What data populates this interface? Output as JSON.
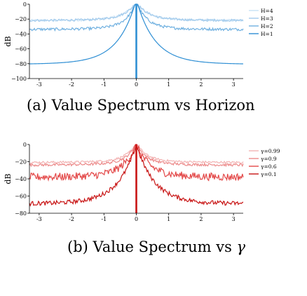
{
  "chart_data": [
    {
      "type": "line",
      "caption": "(a) Value Spectrum vs Horizon",
      "ylabel": "dB",
      "xlim": [
        -3.3,
        3.3
      ],
      "ylim": [
        -100,
        0
      ],
      "xticks": [
        -3,
        -2,
        -1,
        0,
        1,
        2,
        3
      ],
      "xtick_labels": [
        "-3",
        "-2",
        "-1",
        "0",
        "1",
        "2",
        "3"
      ],
      "yticks": [
        0,
        -20,
        -40,
        -60,
        -80,
        -100
      ],
      "ytick_labels": [
        "0",
        "−20",
        "−40",
        "−60",
        "−80",
        "−100"
      ],
      "legend_position": "right",
      "series": [
        {
          "name": "H=4",
          "color": "#c6e0f5",
          "floor": -22,
          "center": 0,
          "noise": 1.5,
          "kind": "tent",
          "roll": 0.35
        },
        {
          "name": "H=3",
          "color": "#a3cbec",
          "floor": -22,
          "center": 0,
          "noise": 1.5,
          "kind": "tent",
          "roll": 0.35
        },
        {
          "name": "H=2",
          "color": "#6fb0e0",
          "floor": -34,
          "center": 0,
          "noise": 1.8,
          "kind": "tent",
          "roll": 0.32
        },
        {
          "name": "H=1",
          "color": "#2f8fd4",
          "floor": -81,
          "center": 0,
          "noise": 0.0,
          "kind": "decay",
          "roll": 0.55
        }
      ]
    },
    {
      "type": "line",
      "caption_prefix": "(b) Value Spectrum vs ",
      "caption_symbol": "γ",
      "ylabel": "dB",
      "xlim": [
        -3.3,
        3.3
      ],
      "ylim": [
        -80,
        0
      ],
      "xticks": [
        -3,
        -2,
        -1,
        0,
        1,
        2,
        3
      ],
      "xtick_labels": [
        "-3",
        "-2",
        "-1",
        "0",
        "1",
        "2",
        "3"
      ],
      "yticks": [
        0,
        -20,
        -40,
        -60,
        -80
      ],
      "ytick_labels": [
        "0",
        "−20",
        "−40",
        "−60",
        "−80"
      ],
      "legend_position": "right",
      "series": [
        {
          "name": "γ=0.99",
          "color": "#f2b3b3",
          "floor": -21,
          "center": -1,
          "noise": 1.2,
          "kind": "tent",
          "roll": 0.3
        },
        {
          "name": "γ=0.9",
          "color": "#ec8a8a",
          "floor": -24,
          "center": -2,
          "noise": 1.5,
          "kind": "tent",
          "roll": 0.3
        },
        {
          "name": "γ=0.6",
          "color": "#e34848",
          "floor": -38,
          "center": -3,
          "noise": 4.5,
          "kind": "tent",
          "roll": 0.4
        },
        {
          "name": "γ=0.1",
          "color": "#c81414",
          "floor": -69,
          "center": -3,
          "noise": 2.5,
          "kind": "tent",
          "roll": 0.55
        }
      ]
    }
  ]
}
